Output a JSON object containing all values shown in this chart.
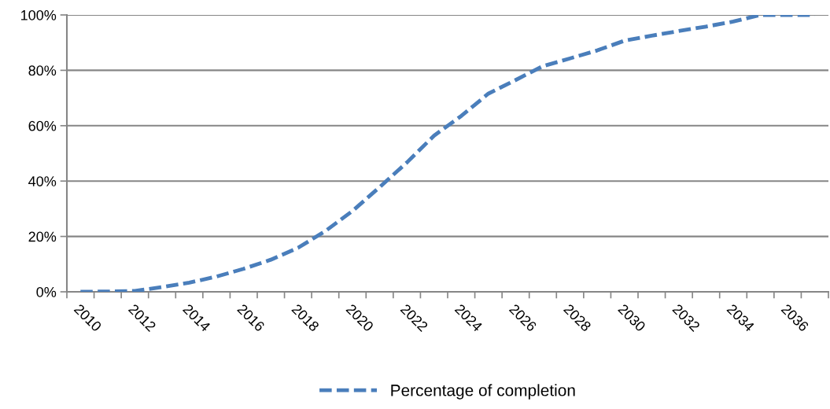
{
  "chart_data": {
    "type": "line",
    "categories": [
      "2010",
      null,
      "2012",
      null,
      "2014",
      null,
      "2016",
      null,
      "2018",
      null,
      "2020",
      null,
      "2022",
      null,
      "2024",
      null,
      "2026",
      null,
      "2028",
      null,
      "2030",
      null,
      "2032",
      null,
      "2034",
      null,
      "2036",
      null
    ],
    "series": [
      {
        "name": "Percentage of completion",
        "color": "#4a7ebb",
        "line_style": "dashed",
        "values": [
          0,
          0.1,
          0.3,
          1.7,
          3.3,
          5.5,
          8.3,
          11.6,
          15.9,
          21.9,
          29.2,
          37.8,
          46.7,
          56.4,
          63.5,
          71.6,
          76.5,
          81.5,
          84.3,
          87.2,
          90.7,
          92.5,
          94.2,
          95.8,
          97.6,
          100,
          100,
          100
        ]
      }
    ],
    "ylim": [
      0,
      100
    ],
    "yticks": [
      {
        "value": 0,
        "label": "0%"
      },
      {
        "value": 20,
        "label": "20%"
      },
      {
        "value": 40,
        "label": "40%"
      },
      {
        "value": 60,
        "label": "60%"
      },
      {
        "value": 80,
        "label": "80%"
      },
      {
        "value": 100,
        "label": "100%"
      }
    ],
    "grid": "y",
    "legend": "bottom",
    "marker": "none"
  }
}
